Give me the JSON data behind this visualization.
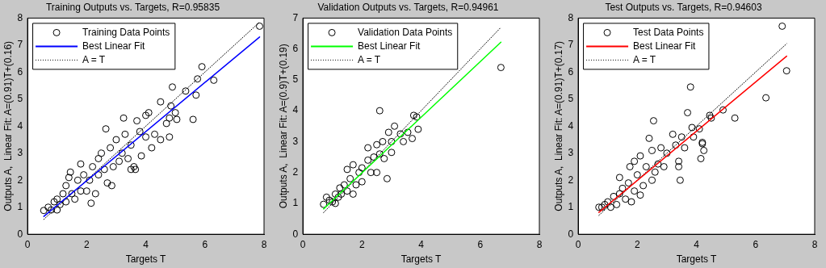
{
  "chart_data": [
    {
      "type": "scatter",
      "title": "Training Outputs vs. Targets, R=0.95835",
      "xlabel": "Targets T",
      "ylabel": "Outputs A,  Linear Fit: A=(0.91)T+(0.16)",
      "xlim": [
        0,
        8
      ],
      "xticks": [
        0,
        2,
        4,
        6,
        8
      ],
      "ylim": [
        0,
        8
      ],
      "yticks": [
        0,
        1,
        2,
        3,
        4,
        5,
        6,
        7,
        8
      ],
      "legend": "top left",
      "series": [
        {
          "type": "scatter",
          "name": "Training Data Points",
          "color": "#000000",
          "marker": "circle",
          "x": [
            0.55,
            0.7,
            0.8,
            0.9,
            1.0,
            1.0,
            1.1,
            1.2,
            1.3,
            1.3,
            1.4,
            1.45,
            1.5,
            1.6,
            1.7,
            1.8,
            1.8,
            1.9,
            2.0,
            2.1,
            2.15,
            2.2,
            2.3,
            2.4,
            2.4,
            2.5,
            2.6,
            2.65,
            2.7,
            2.8,
            2.85,
            2.9,
            3.0,
            3.1,
            3.2,
            3.25,
            3.3,
            3.4,
            3.5,
            3.5,
            3.6,
            3.65,
            3.7,
            3.8,
            3.85,
            4.0,
            4.0,
            4.1,
            4.2,
            4.3,
            4.5,
            4.5,
            4.7,
            4.8,
            4.8,
            4.85,
            4.9,
            5.0,
            5.05,
            5.35,
            5.6,
            5.7,
            5.75,
            5.9,
            6.3,
            7.85
          ],
          "values": [
            0.88,
            1.0,
            0.9,
            1.2,
            0.9,
            1.3,
            1.1,
            1.5,
            1.2,
            1.8,
            2.1,
            2.3,
            1.5,
            1.3,
            2.0,
            2.6,
            1.6,
            2.2,
            1.6,
            2.0,
            1.15,
            2.5,
            1.5,
            2.2,
            2.8,
            3.0,
            2.4,
            3.9,
            1.9,
            3.2,
            1.8,
            2.5,
            3.5,
            2.7,
            3.0,
            4.3,
            3.7,
            2.8,
            3.3,
            2.4,
            2.5,
            2.4,
            4.2,
            3.8,
            2.9,
            3.6,
            4.4,
            4.5,
            3.2,
            3.7,
            3.5,
            4.9,
            4.1,
            3.6,
            4.3,
            4.75,
            5.45,
            4.5,
            4.25,
            5.3,
            4.25,
            5.15,
            5.75,
            6.2,
            5.7,
            7.7
          ]
        },
        {
          "type": "line",
          "name": "Best Linear Fit",
          "color": "#0000ff",
          "line_style": "solid",
          "x": [
            0.55,
            7.85
          ],
          "values": [
            0.66,
            7.3
          ]
        },
        {
          "type": "line",
          "name": "A = T",
          "color": "#000000",
          "line_style": "dotted",
          "x": [
            0.55,
            7.85
          ],
          "values": [
            0.55,
            7.85
          ]
        }
      ]
    },
    {
      "type": "scatter",
      "title": "Validation Outputs vs. Targets, R=0.94961",
      "xlabel": "Targets T",
      "ylabel": "Outputs A,  Linear Fit: A=(0.9)T+(0.19)",
      "xlim": [
        0,
        8
      ],
      "xticks": [
        0,
        2,
        4,
        6,
        8
      ],
      "ylim": [
        0,
        7
      ],
      "yticks": [
        0,
        1,
        2,
        3,
        4,
        5,
        6,
        7
      ],
      "legend": "top left",
      "series": [
        {
          "type": "scatter",
          "name": "Validation Data Points",
          "color": "#000000",
          "marker": "circle",
          "x": [
            0.7,
            0.8,
            0.9,
            1.0,
            1.1,
            1.1,
            1.2,
            1.25,
            1.3,
            1.4,
            1.5,
            1.5,
            1.6,
            1.7,
            1.7,
            1.8,
            1.9,
            2.0,
            2.0,
            2.2,
            2.2,
            2.3,
            2.4,
            2.5,
            2.5,
            2.6,
            2.6,
            2.7,
            2.75,
            2.85,
            2.9,
            3.0,
            3.0,
            3.1,
            3.3,
            3.4,
            3.55,
            3.7,
            3.75,
            3.85,
            3.9,
            6.7
          ],
          "values": [
            0.97,
            1.2,
            1.1,
            1.05,
            1.0,
            1.3,
            1.2,
            1.5,
            1.3,
            1.6,
            2.1,
            1.4,
            1.8,
            2.25,
            1.3,
            1.6,
            2.0,
            1.7,
            2.15,
            2.8,
            2.4,
            2.0,
            2.5,
            2.0,
            2.9,
            4.0,
            2.6,
            3.0,
            2.45,
            1.8,
            3.3,
            2.65,
            3.0,
            3.5,
            3.25,
            3.0,
            3.3,
            3.1,
            3.85,
            3.8,
            3.4,
            5.4
          ]
        },
        {
          "type": "line",
          "name": "Best Linear Fit",
          "color": "#00ff00",
          "line_style": "solid",
          "x": [
            0.7,
            6.7
          ],
          "values": [
            0.82,
            6.22
          ]
        },
        {
          "type": "line",
          "name": "A = T",
          "color": "#000000",
          "line_style": "dotted",
          "x": [
            0.7,
            6.7
          ],
          "values": [
            0.7,
            6.7
          ]
        }
      ]
    },
    {
      "type": "scatter",
      "title": "Test Outputs vs. Targets, R=0.94603",
      "xlabel": "Targets T",
      "ylabel": "Outputs A,  Linear Fit: A=(0.91)T+(0.17)",
      "xlim": [
        0,
        8
      ],
      "xticks": [
        0,
        2,
        4,
        6,
        8
      ],
      "ylim": [
        0,
        8
      ],
      "yticks": [
        0,
        1,
        2,
        3,
        4,
        5,
        6,
        7,
        8
      ],
      "legend": "top left",
      "series": [
        {
          "type": "scatter",
          "name": "Test Data Points",
          "color": "#000000",
          "marker": "circle",
          "x": [
            0.7,
            0.8,
            0.9,
            1.0,
            1.1,
            1.2,
            1.3,
            1.4,
            1.4,
            1.5,
            1.6,
            1.7,
            1.75,
            1.8,
            1.9,
            1.9,
            2.0,
            2.1,
            2.1,
            2.2,
            2.3,
            2.4,
            2.5,
            2.5,
            2.55,
            2.6,
            2.7,
            2.8,
            2.9,
            3.0,
            3.2,
            3.3,
            3.4,
            3.4,
            3.45,
            3.5,
            3.6,
            3.7,
            3.8,
            3.85,
            3.9,
            4.1,
            4.15,
            4.2,
            4.25,
            4.2,
            4.45,
            4.5,
            4.9,
            5.3,
            6.35,
            6.9,
            7.05
          ],
          "values": [
            1.0,
            1.0,
            1.1,
            1.2,
            1.0,
            1.4,
            1.1,
            2.1,
            1.5,
            1.7,
            1.3,
            1.9,
            2.5,
            1.2,
            2.7,
            1.6,
            2.2,
            1.45,
            2.9,
            1.8,
            2.5,
            3.55,
            2.0,
            3.1,
            4.2,
            2.3,
            2.6,
            3.2,
            2.5,
            3.0,
            3.7,
            3.3,
            2.7,
            2.5,
            2.0,
            3.6,
            3.2,
            4.5,
            5.45,
            3.95,
            3.6,
            3.9,
            2.8,
            3.4,
            3.1,
            3.35,
            4.4,
            4.3,
            4.6,
            4.3,
            5.05,
            7.7,
            6.05
          ]
        },
        {
          "type": "line",
          "name": "Best Linear Fit",
          "color": "#ff0000",
          "line_style": "solid",
          "x": [
            0.7,
            7.05
          ],
          "values": [
            0.81,
            6.59
          ]
        },
        {
          "type": "line",
          "name": "A = T",
          "color": "#000000",
          "line_style": "dotted",
          "x": [
            0.7,
            7.05
          ],
          "values": [
            0.7,
            7.05
          ]
        }
      ]
    }
  ]
}
